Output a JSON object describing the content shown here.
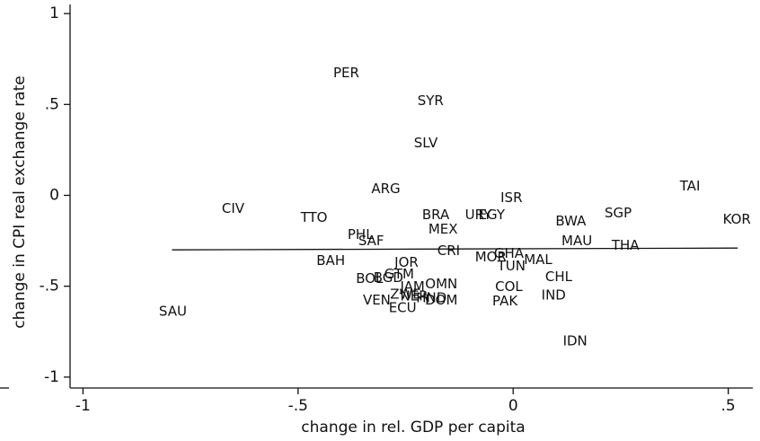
{
  "chart_data": {
    "type": "scatter",
    "x_label": "change in rel. GDP per capita",
    "y_label": "change in CPI real exchange rate",
    "labels": [
      "PER",
      "SYR",
      "SLV",
      "TAI",
      "KOR",
      "ISR",
      "ARG",
      "CIV",
      "TTO",
      "BRA",
      "URY",
      "EGY",
      "SGP",
      "BWA",
      "MEX",
      "PHL",
      "SAF",
      "MAU",
      "THA",
      "CRI",
      "MOR",
      "GHA",
      "TUN",
      "MAL",
      "BAH",
      "JOR",
      "CHL",
      "BOL",
      "BGD",
      "GTM",
      "JAM",
      "OMN",
      "COL",
      "IND",
      "ZWE",
      "NER",
      "HND",
      "DOM",
      "VEN",
      "ECU",
      "PAK",
      "SAU",
      "IDN"
    ],
    "x": [
      -0.388,
      -0.192,
      -0.203,
      0.411,
      0.52,
      -0.004,
      -0.296,
      -0.651,
      -0.463,
      -0.18,
      -0.081,
      -0.05,
      0.244,
      0.134,
      -0.163,
      -0.355,
      -0.33,
      0.148,
      0.261,
      -0.15,
      -0.052,
      -0.01,
      -0.004,
      0.058,
      -0.424,
      -0.248,
      0.106,
      -0.334,
      -0.29,
      -0.265,
      -0.234,
      -0.167,
      -0.01,
      0.094,
      -0.25,
      -0.23,
      -0.19,
      -0.167,
      -0.317,
      -0.257,
      -0.019,
      -0.791,
      0.144
    ],
    "y": [
      0.673,
      0.52,
      0.287,
      0.05,
      -0.134,
      -0.015,
      0.035,
      -0.074,
      -0.124,
      -0.109,
      -0.109,
      -0.109,
      -0.099,
      -0.144,
      -0.188,
      -0.218,
      -0.252,
      -0.252,
      -0.277,
      -0.307,
      -0.342,
      -0.322,
      -0.391,
      -0.356,
      -0.361,
      -0.371,
      -0.45,
      -0.46,
      -0.455,
      -0.436,
      -0.505,
      -0.49,
      -0.505,
      -0.55,
      -0.545,
      -0.555,
      -0.565,
      -0.579,
      -0.579,
      -0.619,
      -0.584,
      -0.639,
      -0.802
    ],
    "color": "#111111",
    "fit_line": {
      "x": [
        -0.793,
        0.522
      ],
      "y": [
        -0.3,
        -0.29
      ]
    },
    "xlim": [
      -1.03,
      0.555
    ],
    "ylim": [
      -1.06,
      1.05
    ],
    "xticks": [
      -1,
      {
        "value": -0.5,
        "label": "-.5"
      },
      0,
      {
        "value": 0.5,
        "label": ".5"
      }
    ],
    "yticks": [
      -1,
      {
        "value": -0.5,
        "label": "-.5"
      },
      0,
      {
        "value": 0.5,
        "label": ".5"
      },
      1
    ],
    "grid": false
  }
}
